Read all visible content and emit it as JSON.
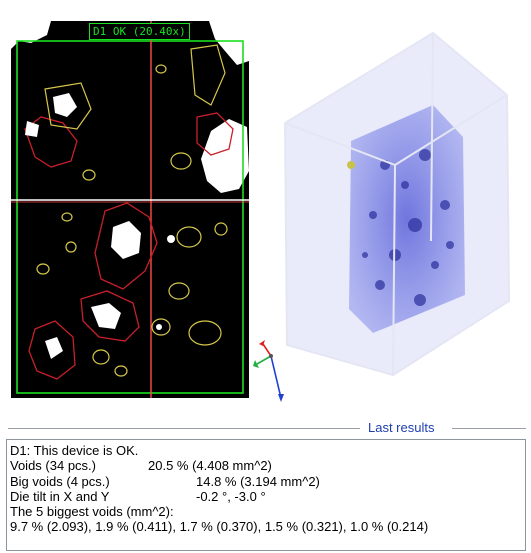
{
  "xray": {
    "label": "D1 OK  (20.40x)",
    "colors": {
      "background": "#000000",
      "frame": "#18e020",
      "crosshair_v": "#ff4b4b",
      "crosshair_h": "#ffffff",
      "big_void_outline": "#c8202a",
      "void_outline": "#d6c84a",
      "void_fill": "#ffffff"
    }
  },
  "volume": {
    "colors": {
      "cube_edge": "#e4e6f4",
      "volume_fill": "#5a61d8",
      "void_spots": "#2a2f9c"
    }
  },
  "axis_gizmo": {
    "icon": "xyz-axis-icon"
  },
  "results": {
    "title": "Last results",
    "status_line": "D1: This device is OK.",
    "voids_label": "Voids (34 pcs.)",
    "voids_value": "20.5 % (4.408 mm^2)",
    "big_voids_label": "Big voids (4 pcs.)",
    "big_voids_value": "14.8 % (3.194 mm^2)",
    "die_tilt_label": "Die tilt in X and Y",
    "die_tilt_value": "-0.2 °, -3.0 °",
    "biggest_label": "The 5 biggest voids (mm^2):",
    "biggest_values": "9.7 % (2.093), 1.9 % (0.411), 1.7 % (0.370), 1.5 % (0.321), 1.0 % (0.214)"
  }
}
